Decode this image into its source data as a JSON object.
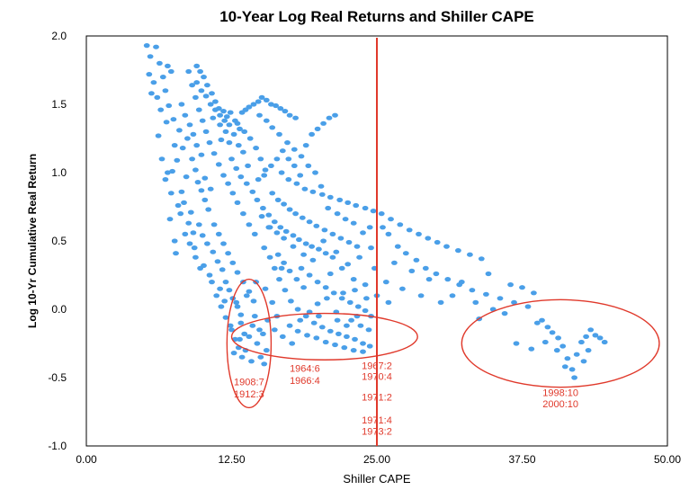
{
  "chart_data": {
    "type": "scatter",
    "title": "10-Year Log Real Returns and Shiller CAPE",
    "xlabel": "Shiller CAPE",
    "ylabel": "Log 10-Yr Cumulative Real Return",
    "xlim": [
      0,
      50
    ],
    "ylim": [
      -1.0,
      2.0
    ],
    "x_ticks": [
      "0.00",
      "12.50",
      "25.00",
      "37.50",
      "50.00"
    ],
    "y_ticks": [
      "2.0",
      "1.5",
      "1.0",
      "0.5",
      "0.0",
      "-0.5",
      "-1.0"
    ],
    "grid": false,
    "legend": "none",
    "point_color": "#4a9fe8",
    "annotation_color": "#e0392b",
    "reference_line": {
      "x": 25.0,
      "color": "#e0392b"
    },
    "ellipses": [
      {
        "cx": 14.0,
        "cy": -0.25,
        "rx": 1.9,
        "ry": 0.47
      },
      {
        "cx": 20.5,
        "cy": -0.2,
        "rx": 8.0,
        "ry": 0.17
      },
      {
        "cx": 40.8,
        "cy": -0.25,
        "rx": 8.5,
        "ry": 0.32
      }
    ],
    "annotations": [
      {
        "text": "1908:7",
        "x": 14.0,
        "y": -0.53
      },
      {
        "text": "1912:3",
        "x": 14.0,
        "y": -0.62
      },
      {
        "text": "1964:6",
        "x": 18.8,
        "y": -0.43
      },
      {
        "text": "1966:4",
        "x": 18.8,
        "y": -0.52
      },
      {
        "text": "1967:2",
        "x": 25.0,
        "y": -0.41
      },
      {
        "text": "1970:4",
        "x": 25.0,
        "y": -0.49
      },
      {
        "text": "1971:2",
        "x": 25.0,
        "y": -0.64
      },
      {
        "text": "1971:4",
        "x": 25.0,
        "y": -0.81
      },
      {
        "text": "1973:2",
        "x": 25.0,
        "y": -0.89
      },
      {
        "text": "1998:10",
        "x": 40.8,
        "y": -0.61
      },
      {
        "text": "2000:10",
        "x": 40.8,
        "y": -0.69
      }
    ],
    "points": [
      [
        5.2,
        1.93
      ],
      [
        5.5,
        1.85
      ],
      [
        6.0,
        1.92
      ],
      [
        6.3,
        1.8
      ],
      [
        5.4,
        1.72
      ],
      [
        5.8,
        1.66
      ],
      [
        6.6,
        1.7
      ],
      [
        7.0,
        1.78
      ],
      [
        7.3,
        1.74
      ],
      [
        5.6,
        1.58
      ],
      [
        6.1,
        1.55
      ],
      [
        6.4,
        1.46
      ],
      [
        6.8,
        1.6
      ],
      [
        7.1,
        1.49
      ],
      [
        6.9,
        1.37
      ],
      [
        6.2,
        1.27
      ],
      [
        7.5,
        1.39
      ],
      [
        7.6,
        1.2
      ],
      [
        8.0,
        1.31
      ],
      [
        8.3,
        1.18
      ],
      [
        8.7,
        1.25
      ],
      [
        9.1,
        1.1
      ],
      [
        9.4,
        1.02
      ],
      [
        7.8,
        1.09
      ],
      [
        7.4,
        1.01
      ],
      [
        8.6,
        0.97
      ],
      [
        9.6,
        0.93
      ],
      [
        9.9,
        0.87
      ],
      [
        10.2,
        0.8
      ],
      [
        10.5,
        0.73
      ],
      [
        8.2,
        0.86
      ],
      [
        7.9,
        0.76
      ],
      [
        8.8,
        0.63
      ],
      [
        9.2,
        0.56
      ],
      [
        7.2,
        0.66
      ],
      [
        7.6,
        0.5
      ],
      [
        7.7,
        0.41
      ],
      [
        9.0,
        0.71
      ],
      [
        9.3,
        0.45
      ],
      [
        9.7,
        0.62
      ],
      [
        10.0,
        0.54
      ],
      [
        10.4,
        0.48
      ],
      [
        10.9,
        0.42
      ],
      [
        11.3,
        0.35
      ],
      [
        11.7,
        0.29
      ],
      [
        12.0,
        0.2
      ],
      [
        12.3,
        0.14
      ],
      [
        12.6,
        0.08
      ],
      [
        13.0,
        0.02
      ],
      [
        13.3,
        -0.04
      ],
      [
        11.5,
        0.15
      ],
      [
        11.9,
        0.06
      ],
      [
        9.8,
        0.3
      ],
      [
        10.6,
        0.25
      ],
      [
        9.5,
        1.78
      ],
      [
        9.8,
        1.74
      ],
      [
        10.1,
        1.7
      ],
      [
        10.4,
        1.64
      ],
      [
        10.8,
        1.58
      ],
      [
        11.1,
        1.52
      ],
      [
        11.4,
        1.47
      ],
      [
        11.8,
        1.45
      ],
      [
        12.1,
        1.41
      ],
      [
        12.4,
        1.44
      ],
      [
        12.8,
        1.38
      ],
      [
        13.2,
        1.32
      ],
      [
        10.9,
        1.4
      ],
      [
        11.5,
        1.35
      ],
      [
        11.6,
        1.24
      ],
      [
        12.0,
        1.3
      ],
      [
        12.3,
        1.22
      ],
      [
        13.0,
        1.36
      ],
      [
        13.4,
        1.44
      ],
      [
        13.7,
        1.46
      ],
      [
        14.0,
        1.48
      ],
      [
        14.4,
        1.5
      ],
      [
        14.8,
        1.52
      ],
      [
        15.1,
        1.55
      ],
      [
        15.5,
        1.53
      ],
      [
        15.9,
        1.5
      ],
      [
        16.3,
        1.49
      ],
      [
        16.7,
        1.47
      ],
      [
        17.1,
        1.45
      ],
      [
        17.5,
        1.42
      ],
      [
        18.0,
        1.4
      ],
      [
        13.6,
        1.3
      ],
      [
        14.1,
        1.25
      ],
      [
        14.6,
        1.18
      ],
      [
        15.0,
        1.1
      ],
      [
        15.4,
        1.02
      ],
      [
        12.5,
        1.1
      ],
      [
        12.9,
        1.03
      ],
      [
        13.3,
        0.97
      ],
      [
        13.8,
        0.92
      ],
      [
        14.3,
        0.86
      ],
      [
        14.7,
        0.8
      ],
      [
        15.2,
        0.74
      ],
      [
        15.7,
        0.69
      ],
      [
        16.2,
        0.64
      ],
      [
        16.7,
        0.6
      ],
      [
        17.2,
        0.57
      ],
      [
        17.8,
        0.54
      ],
      [
        18.3,
        0.51
      ],
      [
        18.9,
        0.48
      ],
      [
        19.4,
        0.46
      ],
      [
        20.0,
        0.44
      ],
      [
        20.6,
        0.41
      ],
      [
        21.2,
        0.38
      ],
      [
        16.0,
        0.85
      ],
      [
        16.5,
        0.8
      ],
      [
        17.0,
        0.77
      ],
      [
        17.5,
        0.73
      ],
      [
        18.0,
        0.7
      ],
      [
        18.6,
        0.67
      ],
      [
        19.2,
        0.64
      ],
      [
        19.8,
        0.61
      ],
      [
        20.5,
        0.58
      ],
      [
        21.2,
        0.55
      ],
      [
        21.9,
        0.52
      ],
      [
        22.6,
        0.49
      ],
      [
        23.3,
        0.46
      ],
      [
        16.8,
        1.0
      ],
      [
        17.4,
        0.95
      ],
      [
        18.1,
        0.92
      ],
      [
        18.8,
        0.88
      ],
      [
        19.5,
        0.86
      ],
      [
        20.3,
        0.84
      ],
      [
        21.0,
        0.82
      ],
      [
        21.8,
        0.8
      ],
      [
        22.5,
        0.78
      ],
      [
        23.2,
        0.76
      ],
      [
        24.0,
        0.74
      ],
      [
        24.7,
        0.72
      ],
      [
        25.4,
        0.7
      ],
      [
        26.2,
        0.66
      ],
      [
        27.0,
        0.62
      ],
      [
        27.8,
        0.58
      ],
      [
        28.6,
        0.55
      ],
      [
        29.4,
        0.52
      ],
      [
        30.2,
        0.49
      ],
      [
        31.0,
        0.46
      ],
      [
        32.0,
        0.43
      ],
      [
        33.0,
        0.4
      ],
      [
        34.0,
        0.37
      ],
      [
        26.8,
        0.46
      ],
      [
        27.5,
        0.41
      ],
      [
        28.4,
        0.36
      ],
      [
        29.2,
        0.3
      ],
      [
        30.1,
        0.26
      ],
      [
        31.1,
        0.22
      ],
      [
        32.1,
        0.18
      ],
      [
        33.2,
        0.14
      ],
      [
        34.4,
        0.11
      ],
      [
        35.6,
        0.08
      ],
      [
        36.8,
        0.05
      ],
      [
        38.0,
        0.02
      ],
      [
        26.0,
        0.55
      ],
      [
        25.5,
        0.6
      ],
      [
        24.4,
        0.6
      ],
      [
        23.8,
        0.56
      ],
      [
        23.0,
        0.63
      ],
      [
        22.3,
        0.66
      ],
      [
        21.6,
        0.7
      ],
      [
        20.8,
        0.74
      ],
      [
        20.2,
        0.9
      ],
      [
        19.7,
        1.0
      ],
      [
        19.1,
        1.05
      ],
      [
        18.5,
        1.12
      ],
      [
        17.9,
        1.17
      ],
      [
        17.3,
        1.22
      ],
      [
        16.6,
        1.28
      ],
      [
        16.0,
        1.33
      ],
      [
        15.5,
        1.38
      ],
      [
        14.9,
        1.42
      ],
      [
        18.5,
        0.3
      ],
      [
        19.2,
        0.25
      ],
      [
        19.9,
        0.2
      ],
      [
        20.6,
        0.16
      ],
      [
        21.3,
        0.12
      ],
      [
        22.0,
        0.08
      ],
      [
        22.7,
        0.05
      ],
      [
        23.4,
        0.02
      ],
      [
        24.0,
        -0.01
      ],
      [
        24.5,
        -0.05
      ],
      [
        16.5,
        0.4
      ],
      [
        17.0,
        0.34
      ],
      [
        17.5,
        0.28
      ],
      [
        18.1,
        0.22
      ],
      [
        18.7,
        0.16
      ],
      [
        15.3,
        0.45
      ],
      [
        15.8,
        0.38
      ],
      [
        16.2,
        0.3
      ],
      [
        16.6,
        0.22
      ],
      [
        17.1,
        0.14
      ],
      [
        17.6,
        0.06
      ],
      [
        18.2,
        0.0
      ],
      [
        18.9,
        -0.05
      ],
      [
        19.6,
        -0.1
      ],
      [
        20.3,
        -0.13
      ],
      [
        21.0,
        -0.16
      ],
      [
        21.7,
        -0.18
      ],
      [
        22.4,
        -0.2
      ],
      [
        23.1,
        -0.22
      ],
      [
        23.8,
        -0.25
      ],
      [
        17.5,
        -0.12
      ],
      [
        18.2,
        -0.16
      ],
      [
        19.0,
        -0.19
      ],
      [
        19.8,
        -0.21
      ],
      [
        20.6,
        -0.24
      ],
      [
        21.4,
        -0.26
      ],
      [
        22.2,
        -0.28
      ],
      [
        23.0,
        -0.3
      ],
      [
        23.8,
        -0.31
      ],
      [
        24.4,
        -0.27
      ],
      [
        20.0,
        -0.05
      ],
      [
        21.5,
        -0.02
      ],
      [
        22.8,
        -0.08
      ],
      [
        23.6,
        -0.12
      ],
      [
        24.3,
        -0.15
      ],
      [
        12.5,
        -0.15
      ],
      [
        12.8,
        -0.22
      ],
      [
        13.1,
        -0.28
      ],
      [
        13.4,
        -0.35
      ],
      [
        13.7,
        -0.3
      ],
      [
        14.0,
        -0.2
      ],
      [
        14.3,
        -0.12
      ],
      [
        14.7,
        -0.25
      ],
      [
        15.0,
        -0.35
      ],
      [
        15.3,
        -0.4
      ],
      [
        15.5,
        -0.3
      ],
      [
        13.3,
        -0.1
      ],
      [
        14.5,
        -0.05
      ],
      [
        15.2,
        -0.18
      ],
      [
        12.9,
        0.05
      ],
      [
        13.8,
        0.1
      ],
      [
        14.6,
        0.2
      ],
      [
        15.4,
        0.15
      ],
      [
        16.0,
        0.05
      ],
      [
        16.4,
        -0.05
      ],
      [
        16.8,
        0.3
      ],
      [
        15.8,
        0.6
      ],
      [
        15.1,
        0.68
      ],
      [
        14.5,
        0.55
      ],
      [
        14.0,
        0.62
      ],
      [
        13.5,
        0.7
      ],
      [
        13.0,
        0.78
      ],
      [
        12.6,
        0.85
      ],
      [
        12.2,
        0.92
      ],
      [
        11.8,
        0.98
      ],
      [
        11.4,
        1.06
      ],
      [
        11.0,
        1.14
      ],
      [
        10.6,
        1.22
      ],
      [
        10.3,
        1.3
      ],
      [
        10.0,
        1.38
      ],
      [
        9.7,
        1.46
      ],
      [
        9.4,
        1.55
      ],
      [
        9.1,
        1.64
      ],
      [
        8.8,
        1.74
      ],
      [
        11.0,
        0.62
      ],
      [
        11.4,
        0.55
      ],
      [
        11.8,
        0.48
      ],
      [
        12.2,
        0.41
      ],
      [
        12.6,
        0.34
      ],
      [
        13.0,
        0.27
      ],
      [
        13.5,
        0.2
      ],
      [
        14.0,
        0.13
      ],
      [
        14.4,
        0.06
      ],
      [
        10.7,
        0.88
      ],
      [
        10.2,
        0.96
      ],
      [
        9.9,
        1.13
      ],
      [
        9.5,
        1.2
      ],
      [
        9.2,
        1.28
      ],
      [
        8.9,
        1.35
      ],
      [
        8.5,
        1.42
      ],
      [
        8.2,
        1.5
      ],
      [
        33.8,
        -0.07
      ],
      [
        37.0,
        -0.25
      ],
      [
        38.3,
        -0.29
      ],
      [
        39.2,
        -0.08
      ],
      [
        39.7,
        -0.13
      ],
      [
        40.1,
        -0.17
      ],
      [
        40.6,
        -0.21
      ],
      [
        41.0,
        -0.27
      ],
      [
        41.4,
        -0.36
      ],
      [
        41.8,
        -0.44
      ],
      [
        42.2,
        -0.33
      ],
      [
        42.6,
        -0.24
      ],
      [
        43.0,
        -0.2
      ],
      [
        43.4,
        -0.15
      ],
      [
        43.8,
        -0.19
      ],
      [
        44.2,
        -0.21
      ],
      [
        41.2,
        -0.42
      ],
      [
        42.8,
        -0.38
      ],
      [
        40.5,
        -0.3
      ],
      [
        36.0,
        -0.03
      ],
      [
        38.8,
        -0.1
      ],
      [
        42.0,
        -0.5
      ],
      [
        44.6,
        -0.24
      ],
      [
        39.5,
        -0.24
      ],
      [
        43.2,
        -0.3
      ],
      [
        26.5,
        0.34
      ],
      [
        28.0,
        0.28
      ],
      [
        29.5,
        0.22
      ],
      [
        31.5,
        0.1
      ],
      [
        33.5,
        0.05
      ],
      [
        35.0,
        0.0
      ],
      [
        24.8,
        0.3
      ],
      [
        25.8,
        0.2
      ],
      [
        27.2,
        0.15
      ],
      [
        28.8,
        0.1
      ],
      [
        30.5,
        0.05
      ],
      [
        32.3,
        0.2
      ],
      [
        34.6,
        0.26
      ],
      [
        36.5,
        0.18
      ],
      [
        38.5,
        0.12
      ],
      [
        37.5,
        0.16
      ],
      [
        21.0,
        0.26
      ],
      [
        22.0,
        0.3
      ],
      [
        23.0,
        0.22
      ],
      [
        24.0,
        0.18
      ],
      [
        25.0,
        0.1
      ],
      [
        26.0,
        0.05
      ],
      [
        24.5,
        0.45
      ],
      [
        23.5,
        0.38
      ],
      [
        22.5,
        0.33
      ],
      [
        21.5,
        0.42
      ],
      [
        20.4,
        0.5
      ],
      [
        19.5,
        0.36
      ],
      [
        18.7,
        0.4
      ],
      [
        17.8,
        0.46
      ],
      [
        17.0,
        0.52
      ],
      [
        16.4,
        0.56
      ],
      [
        15.7,
        0.6
      ],
      [
        14.8,
        0.95
      ],
      [
        15.3,
        0.98
      ],
      [
        15.9,
        1.05
      ],
      [
        16.4,
        1.1
      ],
      [
        16.9,
        1.16
      ],
      [
        17.4,
        1.1
      ],
      [
        17.9,
        1.05
      ],
      [
        18.4,
        0.98
      ],
      [
        18.9,
        1.2
      ],
      [
        19.4,
        1.28
      ],
      [
        19.9,
        1.32
      ],
      [
        20.4,
        1.36
      ],
      [
        20.9,
        1.4
      ],
      [
        21.4,
        1.42
      ],
      [
        13.9,
        1.05
      ],
      [
        13.5,
        1.15
      ],
      [
        13.1,
        1.2
      ],
      [
        12.7,
        1.28
      ],
      [
        12.3,
        1.35
      ],
      [
        11.9,
        1.38
      ],
      [
        11.5,
        1.42
      ],
      [
        11.1,
        1.46
      ],
      [
        10.7,
        1.5
      ],
      [
        10.3,
        1.56
      ],
      [
        9.9,
        1.6
      ],
      [
        9.5,
        1.66
      ],
      [
        6.5,
        1.1
      ],
      [
        7.0,
        1.0
      ],
      [
        6.8,
        0.95
      ],
      [
        7.3,
        0.85
      ],
      [
        8.4,
        0.78
      ],
      [
        8.1,
        0.7
      ],
      [
        8.5,
        0.55
      ],
      [
        8.9,
        0.48
      ],
      [
        9.4,
        0.38
      ],
      [
        10.1,
        0.32
      ],
      [
        10.8,
        0.2
      ],
      [
        11.2,
        0.1
      ],
      [
        11.6,
        0.02
      ],
      [
        12.0,
        -0.06
      ],
      [
        12.4,
        -0.12
      ],
      [
        12.7,
        -0.32
      ],
      [
        13.2,
        -0.22
      ],
      [
        13.6,
        -0.18
      ],
      [
        14.2,
        -0.38
      ],
      [
        14.9,
        -0.15
      ],
      [
        15.6,
        -0.08
      ],
      [
        16.2,
        -0.15
      ],
      [
        16.9,
        -0.2
      ],
      [
        17.7,
        -0.25
      ],
      [
        18.4,
        -0.08
      ],
      [
        19.2,
        -0.02
      ],
      [
        19.9,
        0.04
      ],
      [
        20.7,
        0.08
      ],
      [
        21.6,
        -0.08
      ],
      [
        22.4,
        -0.12
      ],
      [
        23.3,
        -0.05
      ],
      [
        22.1,
        0.12
      ],
      [
        23.1,
        0.14
      ],
      [
        24.1,
        0.08
      ]
    ]
  }
}
